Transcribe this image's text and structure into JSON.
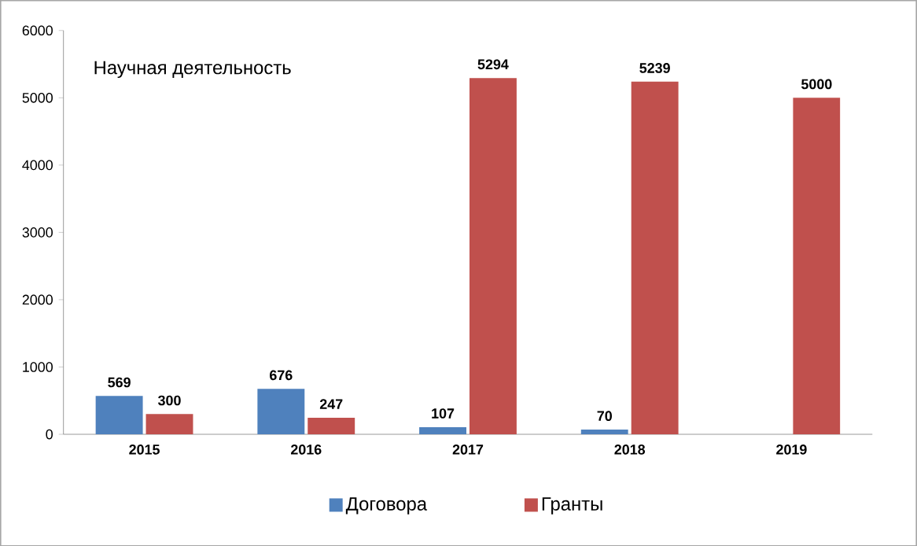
{
  "chart_data": {
    "type": "bar",
    "title": "Научная деятельность",
    "categories": [
      "2015",
      "2016",
      "2017",
      "2018",
      "2019"
    ],
    "series": [
      {
        "name": "Договора",
        "color": "#4f81bd",
        "values": [
          569,
          676,
          107,
          70,
          null
        ]
      },
      {
        "name": "Гранты",
        "color": "#c0504d",
        "values": [
          300,
          247,
          5294,
          5239,
          5000
        ]
      }
    ],
    "ylim": [
      0,
      6000
    ],
    "yticks": [
      0,
      1000,
      2000,
      3000,
      4000,
      5000,
      6000
    ],
    "data_labels": true,
    "legend": "bottom",
    "grid": false
  }
}
